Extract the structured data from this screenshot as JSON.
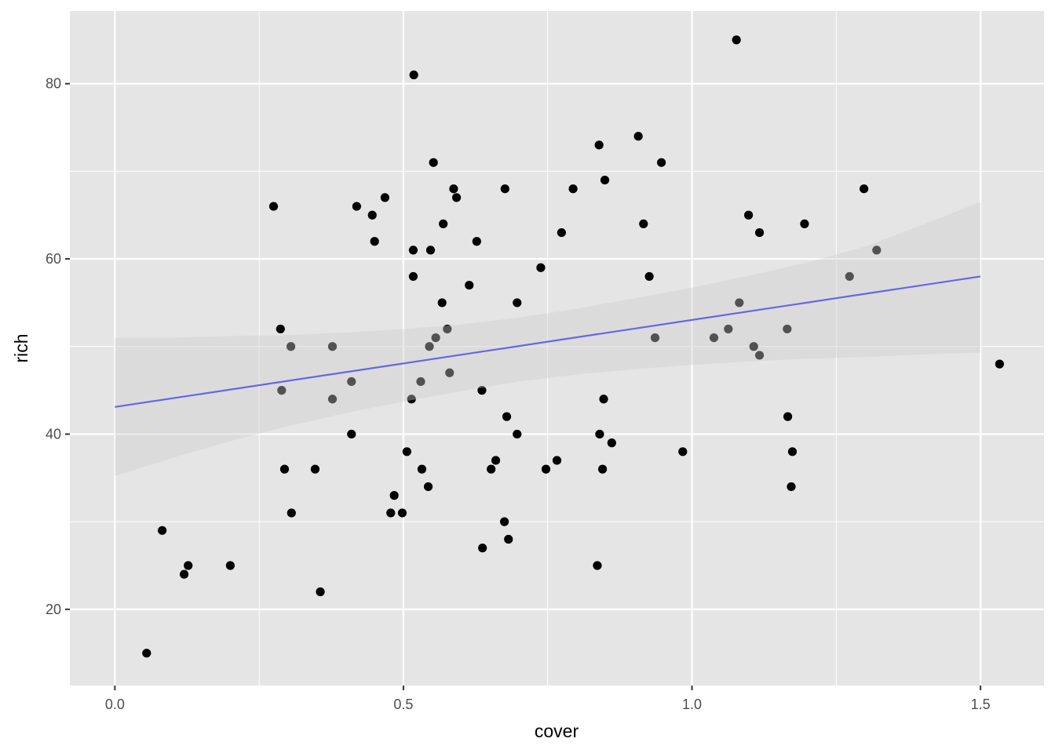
{
  "chart_data": {
    "type": "scatter",
    "title": "",
    "xlabel": "cover",
    "ylabel": "rich",
    "xlim": [
      -0.078,
      1.61
    ],
    "ylim": [
      11.3,
      88.3
    ],
    "x_ticks": [
      0.0,
      0.5,
      1.0,
      1.5
    ],
    "x_tick_labels": [
      "0.0",
      "0.5",
      "1.0",
      "1.5"
    ],
    "y_ticks": [
      20,
      40,
      60,
      80
    ],
    "y_tick_labels": [
      "20",
      "40",
      "60",
      "80"
    ],
    "grid": true,
    "legend": "none",
    "points": [
      {
        "x": 0.055,
        "y": 15
      },
      {
        "x": 0.082,
        "y": 29
      },
      {
        "x": 0.12,
        "y": 24
      },
      {
        "x": 0.127,
        "y": 25
      },
      {
        "x": 0.2,
        "y": 25
      },
      {
        "x": 0.275,
        "y": 66
      },
      {
        "x": 0.287,
        "y": 52
      },
      {
        "x": 0.289,
        "y": 45
      },
      {
        "x": 0.294,
        "y": 36
      },
      {
        "x": 0.305,
        "y": 50
      },
      {
        "x": 0.306,
        "y": 31
      },
      {
        "x": 0.347,
        "y": 36
      },
      {
        "x": 0.356,
        "y": 22
      },
      {
        "x": 0.377,
        "y": 50
      },
      {
        "x": 0.377,
        "y": 44
      },
      {
        "x": 0.41,
        "y": 46
      },
      {
        "x": 0.41,
        "y": 40
      },
      {
        "x": 0.419,
        "y": 66
      },
      {
        "x": 0.446,
        "y": 65
      },
      {
        "x": 0.45,
        "y": 62
      },
      {
        "x": 0.468,
        "y": 67
      },
      {
        "x": 0.478,
        "y": 31
      },
      {
        "x": 0.484,
        "y": 33
      },
      {
        "x": 0.498,
        "y": 31
      },
      {
        "x": 0.506,
        "y": 38
      },
      {
        "x": 0.514,
        "y": 44
      },
      {
        "x": 0.517,
        "y": 61
      },
      {
        "x": 0.517,
        "y": 58
      },
      {
        "x": 0.518,
        "y": 81
      },
      {
        "x": 0.53,
        "y": 46
      },
      {
        "x": 0.532,
        "y": 36
      },
      {
        "x": 0.543,
        "y": 34
      },
      {
        "x": 0.545,
        "y": 50
      },
      {
        "x": 0.547,
        "y": 61
      },
      {
        "x": 0.552,
        "y": 71
      },
      {
        "x": 0.556,
        "y": 51
      },
      {
        "x": 0.567,
        "y": 55
      },
      {
        "x": 0.569,
        "y": 64
      },
      {
        "x": 0.576,
        "y": 52
      },
      {
        "x": 0.58,
        "y": 47
      },
      {
        "x": 0.587,
        "y": 68
      },
      {
        "x": 0.592,
        "y": 67
      },
      {
        "x": 0.614,
        "y": 57
      },
      {
        "x": 0.627,
        "y": 62
      },
      {
        "x": 0.636,
        "y": 45
      },
      {
        "x": 0.637,
        "y": 27
      },
      {
        "x": 0.652,
        "y": 36
      },
      {
        "x": 0.66,
        "y": 37
      },
      {
        "x": 0.675,
        "y": 30
      },
      {
        "x": 0.676,
        "y": 68
      },
      {
        "x": 0.679,
        "y": 42
      },
      {
        "x": 0.682,
        "y": 28
      },
      {
        "x": 0.697,
        "y": 55
      },
      {
        "x": 0.697,
        "y": 40
      },
      {
        "x": 0.738,
        "y": 59
      },
      {
        "x": 0.747,
        "y": 36
      },
      {
        "x": 0.766,
        "y": 37
      },
      {
        "x": 0.774,
        "y": 63
      },
      {
        "x": 0.794,
        "y": 68
      },
      {
        "x": 0.836,
        "y": 25
      },
      {
        "x": 0.839,
        "y": 73
      },
      {
        "x": 0.84,
        "y": 40
      },
      {
        "x": 0.845,
        "y": 36
      },
      {
        "x": 0.847,
        "y": 44
      },
      {
        "x": 0.849,
        "y": 69
      },
      {
        "x": 0.861,
        "y": 39
      },
      {
        "x": 0.907,
        "y": 74
      },
      {
        "x": 0.916,
        "y": 64
      },
      {
        "x": 0.926,
        "y": 58
      },
      {
        "x": 0.936,
        "y": 51
      },
      {
        "x": 0.947,
        "y": 71
      },
      {
        "x": 0.984,
        "y": 38
      },
      {
        "x": 1.038,
        "y": 51
      },
      {
        "x": 1.063,
        "y": 52
      },
      {
        "x": 1.077,
        "y": 85
      },
      {
        "x": 1.082,
        "y": 55
      },
      {
        "x": 1.098,
        "y": 65
      },
      {
        "x": 1.107,
        "y": 50
      },
      {
        "x": 1.117,
        "y": 49
      },
      {
        "x": 1.117,
        "y": 63
      },
      {
        "x": 1.165,
        "y": 52
      },
      {
        "x": 1.166,
        "y": 42
      },
      {
        "x": 1.172,
        "y": 34
      },
      {
        "x": 1.174,
        "y": 38
      },
      {
        "x": 1.195,
        "y": 64
      },
      {
        "x": 1.273,
        "y": 58
      },
      {
        "x": 1.298,
        "y": 68
      },
      {
        "x": 1.32,
        "y": 61
      },
      {
        "x": 1.533,
        "y": 48
      }
    ],
    "trend_line": {
      "method": "linear",
      "color": "#6666e6",
      "x": [
        0.0,
        1.5
      ],
      "y": [
        43.1,
        58.0
      ]
    },
    "confidence_band": {
      "color": "#cccccc",
      "x": [
        0.0,
        0.1,
        0.2,
        0.3,
        0.4,
        0.5,
        0.6,
        0.7,
        0.8,
        0.9,
        1.0,
        1.1,
        1.2,
        1.3,
        1.4,
        1.5
      ],
      "lower": [
        35.2,
        37.3,
        39.2,
        40.9,
        42.4,
        43.7,
        44.9,
        46.0,
        46.8,
        47.4,
        47.9,
        48.3,
        48.6,
        48.8,
        49.1,
        49.3
      ],
      "upper": [
        51.0,
        51.0,
        51.2,
        51.3,
        51.6,
        52.0,
        52.5,
        53.3,
        54.3,
        55.5,
        56.7,
        58.1,
        59.6,
        61.4,
        63.9,
        66.5
      ]
    },
    "colors": {
      "panel_background": "#e5e5e5",
      "grid": "#ffffff",
      "point": "#000000",
      "trend_line": "#6666e6",
      "band": "#cccccc"
    }
  }
}
